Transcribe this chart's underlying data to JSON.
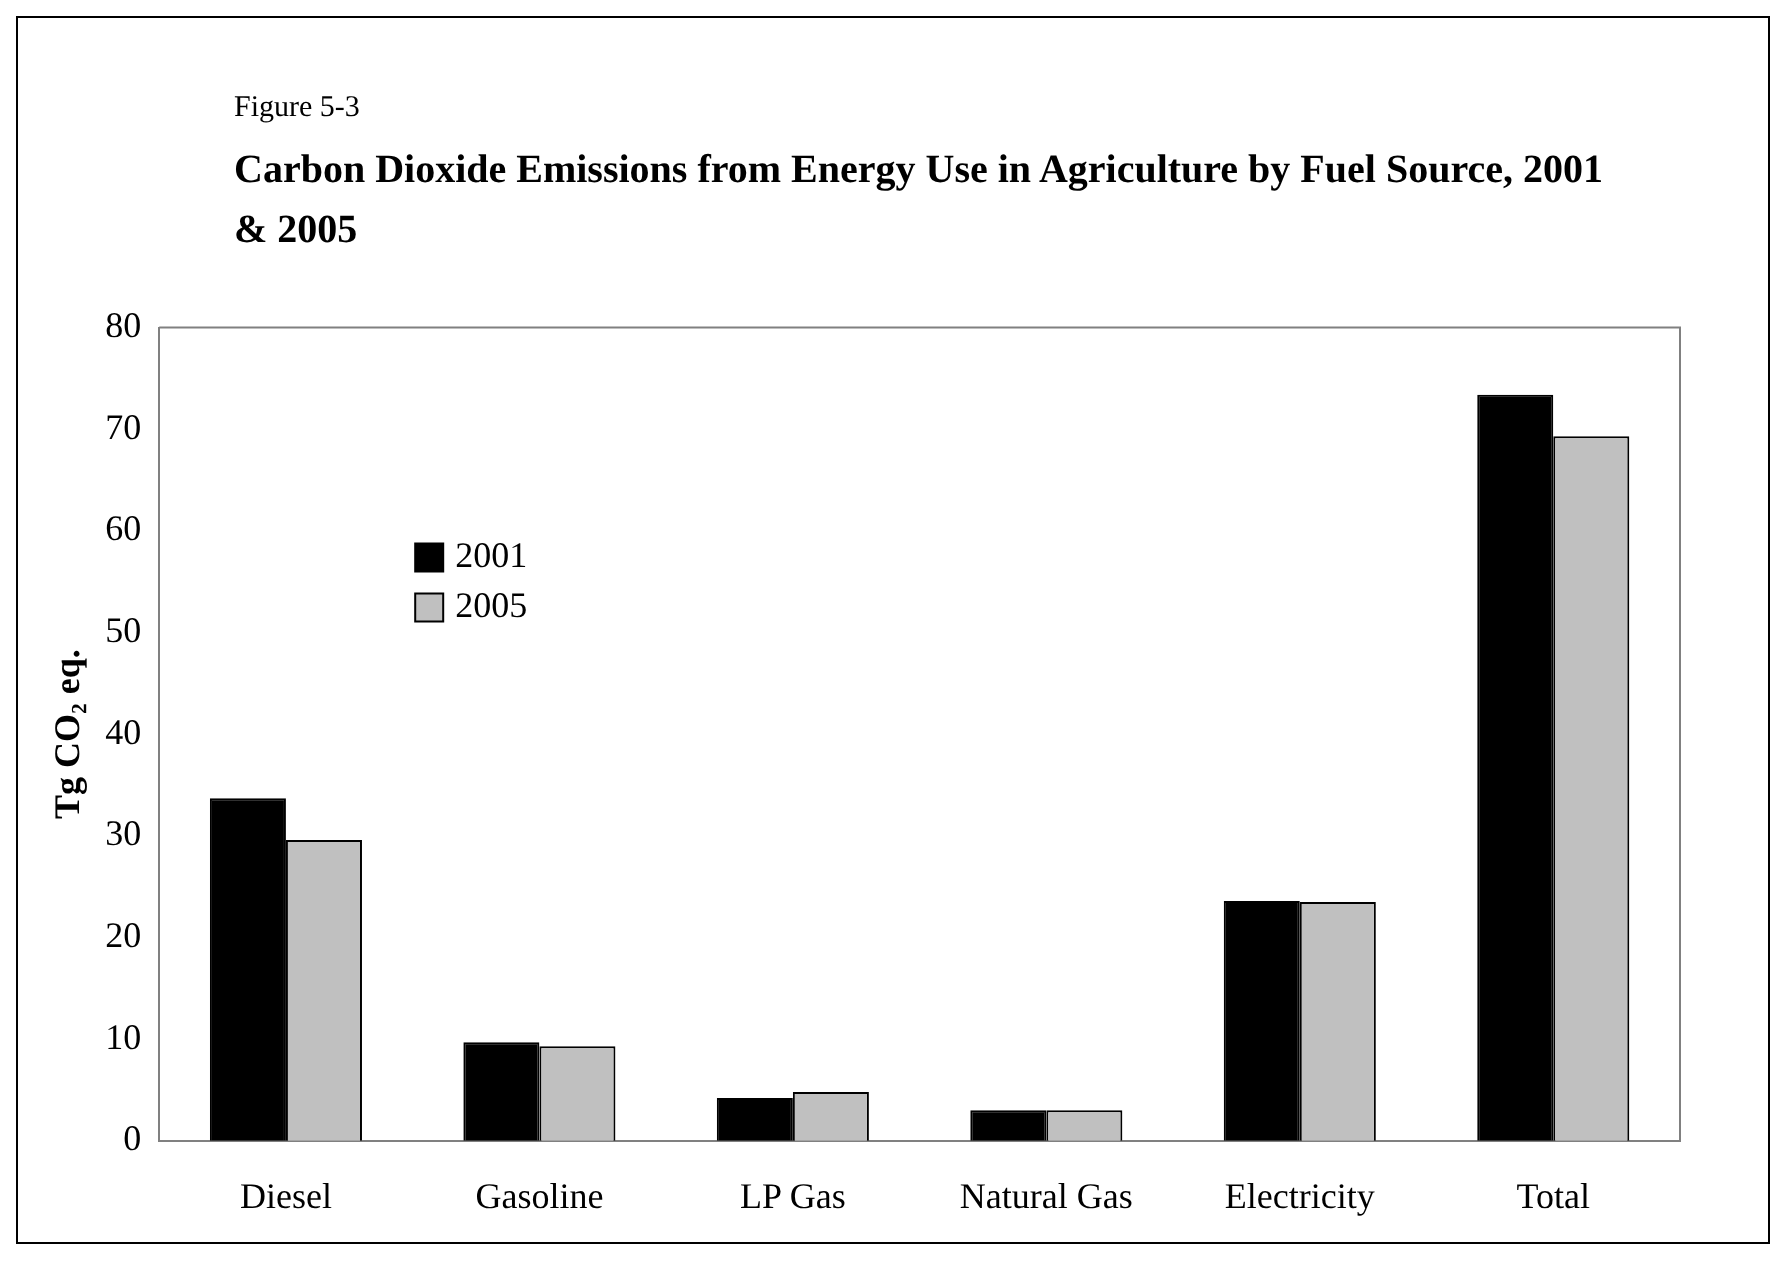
{
  "chart_data": {
    "type": "bar",
    "subtitle": "Figure 5-3",
    "title": "Carbon Dioxide Emissions from Energy Use in Agriculture by Fuel Source, 2001 & 2005",
    "ylabel": "Tg CO₂ eq.",
    "categories": [
      "Diesel",
      "Gasoline",
      "LP Gas",
      "Natural Gas",
      "Electricity",
      "Total"
    ],
    "series": [
      {
        "name": "2001",
        "color": "#000000",
        "values": [
          33.7,
          9.7,
          4.2,
          3.0,
          23.6,
          73.4
        ]
      },
      {
        "name": "2005",
        "color": "#c0c0c0",
        "values": [
          29.6,
          9.3,
          4.8,
          3.0,
          23.5,
          69.3
        ]
      }
    ],
    "ylim": [
      0,
      80
    ],
    "yticks": [
      0,
      10,
      20,
      30,
      40,
      50,
      60,
      70,
      80
    ],
    "grid": false,
    "legend": "left"
  }
}
